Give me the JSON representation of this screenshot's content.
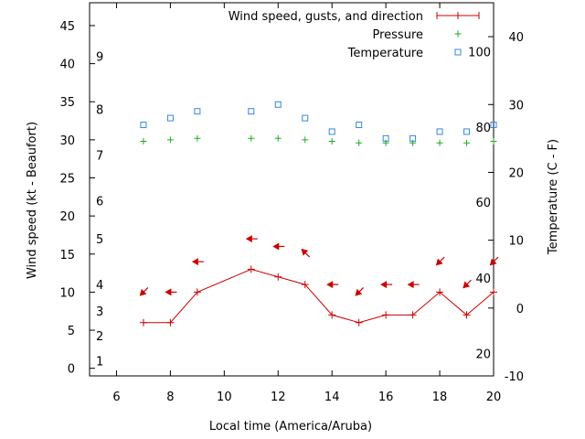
{
  "chart_data": {
    "type": "line",
    "xlabel": "Local time (America/Aruba)",
    "ylabel": "Wind speed (kt - Beaufort)",
    "y2label": "Temperature (C - F)",
    "xlim": [
      5,
      20
    ],
    "ylim": [
      -1,
      48
    ],
    "y2lim": [
      -10,
      45
    ],
    "x_ticks": [
      6,
      8,
      10,
      12,
      14,
      16,
      18,
      20
    ],
    "y_ticks": [
      0,
      5,
      10,
      15,
      20,
      25,
      30,
      35,
      40,
      45
    ],
    "y2_ticks": [
      -10,
      0,
      10,
      20,
      30,
      40
    ],
    "beaufort_labels": [
      {
        "label": "1",
        "kt": 1
      },
      {
        "label": "2",
        "kt": 4.3
      },
      {
        "label": "3",
        "kt": 7.5
      },
      {
        "label": "4",
        "kt": 11
      },
      {
        "label": "5",
        "kt": 17
      },
      {
        "label": "6",
        "kt": 22
      },
      {
        "label": "7",
        "kt": 28
      },
      {
        "label": "8",
        "kt": 34
      },
      {
        "label": "9",
        "kt": 41
      }
    ],
    "fahrenheit_labels": [
      {
        "label": "20",
        "c": -6.7
      },
      {
        "label": "40",
        "c": 4.4
      },
      {
        "label": "60",
        "c": 15.6
      },
      {
        "label": "80",
        "c": 26.7
      },
      {
        "label": "100",
        "c": 37.8
      }
    ],
    "legend": {
      "position": "top-right",
      "entries": [
        {
          "label": "Wind speed, gusts, and direction",
          "color": "#cc0000",
          "marker": "line-plus"
        },
        {
          "label": "Pressure",
          "color": "#22aa22",
          "marker": "plus"
        },
        {
          "label": "Temperature",
          "color": "#3388dd",
          "marker": "square"
        }
      ]
    },
    "series": [
      {
        "name": "Wind speed, gusts, and direction",
        "color": "#cc0000",
        "x": [
          7,
          8,
          9,
          11,
          12,
          13,
          14,
          15,
          16,
          17,
          18,
          19,
          20
        ],
        "values": [
          6,
          6,
          10,
          13,
          12,
          11,
          7,
          6,
          7,
          7,
          10,
          7,
          10
        ]
      },
      {
        "name": "Wind direction arrows",
        "color": "#cc0000",
        "x": [
          7,
          8,
          9,
          11,
          12,
          13,
          14,
          15,
          16,
          17,
          18,
          19,
          20
        ],
        "arrow_y": [
          10,
          10,
          14,
          17,
          16,
          15.2,
          11,
          10,
          11,
          11,
          14,
          11,
          14
        ],
        "arrow_dir": [
          "sw",
          "w",
          "w",
          "w",
          "w",
          "nw",
          "w",
          "sw",
          "w",
          "w",
          "sw",
          "sw",
          "sw"
        ]
      },
      {
        "name": "Pressure",
        "color": "#22aa22",
        "x": [
          7,
          8,
          9,
          11,
          12,
          13,
          14,
          15,
          16,
          17,
          18,
          19,
          20
        ],
        "values": [
          29.8,
          30,
          30.2,
          30.2,
          30.2,
          30,
          29.8,
          29.6,
          29.6,
          29.6,
          29.6,
          29.6,
          29.8
        ]
      },
      {
        "name": "Temperature",
        "color": "#3388dd",
        "axis": "y2",
        "x": [
          7,
          8,
          9,
          11,
          12,
          13,
          14,
          15,
          16,
          17,
          18,
          19,
          20
        ],
        "values": [
          27,
          28,
          29,
          29,
          30,
          28,
          26,
          27,
          25,
          25,
          26,
          26,
          27
        ]
      }
    ]
  }
}
